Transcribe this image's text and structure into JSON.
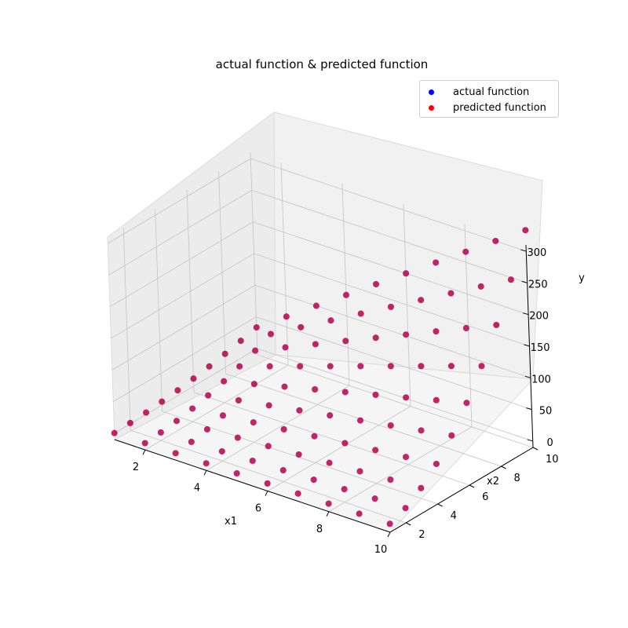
{
  "chart_data": {
    "type": "scatter",
    "projection": "3d",
    "title": "actual function & predicted function",
    "xlabel": "x1",
    "ylabel": "x2",
    "zlabel": "y",
    "xlim": [
      1,
      10
    ],
    "ylim": [
      1,
      10
    ],
    "zlim": [
      -10,
      310
    ],
    "xticks": [
      "2",
      "4",
      "6",
      "8",
      "10"
    ],
    "yticks": [
      "2",
      "4",
      "6",
      "8",
      "10"
    ],
    "zticks": [
      "0",
      "50",
      "100",
      "150",
      "200",
      "250",
      "300"
    ],
    "grid": true,
    "legend_position": "top-right",
    "x_grid": [
      1,
      2,
      3,
      4,
      5,
      6,
      7,
      8,
      9,
      10
    ],
    "series": [
      {
        "name": "actual function",
        "color": "#0000ff",
        "points": "grid of x1 = 1..10 and x2 = 1..10 where y = x1 * x2 * x2 / 3"
      },
      {
        "name": "predicted function",
        "color": "#ff0000",
        "points": "grid of x1 = 1..10 and x2 = 1..10 where y = x1 * x2 * x2 / 3"
      }
    ]
  }
}
